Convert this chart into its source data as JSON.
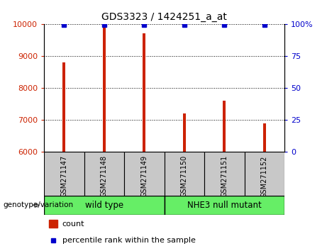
{
  "title": "GDS3323 / 1424251_a_at",
  "samples": [
    "GSM271147",
    "GSM271148",
    "GSM271149",
    "GSM271150",
    "GSM271151",
    "GSM271152"
  ],
  "counts": [
    8800,
    9900,
    9700,
    7200,
    7600,
    6900
  ],
  "percentiles": [
    99,
    99,
    99,
    99,
    99,
    99
  ],
  "groups": [
    {
      "label": "wild type",
      "color": "#77ee77"
    },
    {
      "label": "NHE3 null mutant",
      "color": "#55ee55"
    }
  ],
  "ylim_left": [
    6000,
    10000
  ],
  "ylim_right": [
    0,
    100
  ],
  "yticks_left": [
    6000,
    7000,
    8000,
    9000,
    10000
  ],
  "yticks_right": [
    0,
    25,
    50,
    75,
    100
  ],
  "ytick_labels_right": [
    "0",
    "25",
    "50",
    "75",
    "100%"
  ],
  "bar_color": "#cc2200",
  "dot_color": "#0000cc",
  "bar_width": 0.07,
  "bg_color": "#ffffff",
  "plot_bg": "#ffffff",
  "label_area_color": "#c8c8c8",
  "group_area_color": "#66ee66",
  "genotype_label": "genotype/variation",
  "legend_count_label": "count",
  "legend_pct_label": "percentile rank within the sample"
}
